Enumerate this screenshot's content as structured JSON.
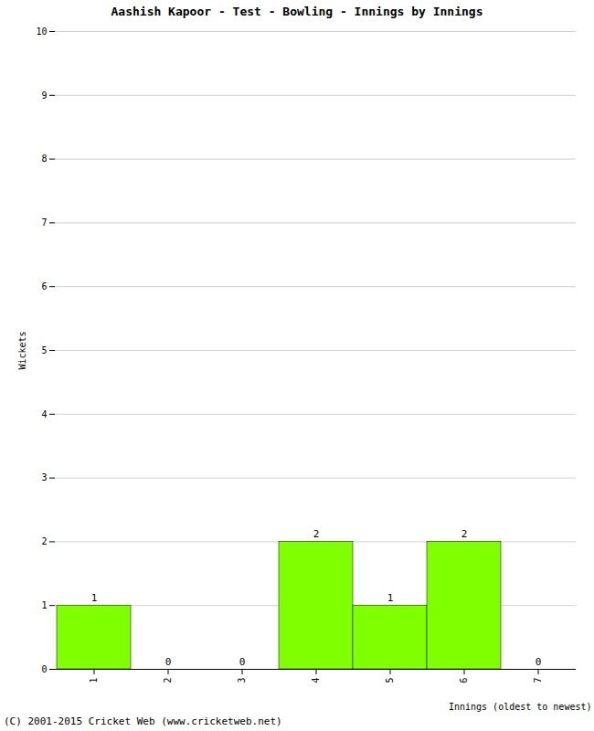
{
  "chart_data": {
    "type": "bar",
    "title": "Aashish Kapoor - Test - Bowling - Innings by Innings",
    "x_label": "Innings (oldest to newest)",
    "y_label": "Wickets",
    "caption": "(C) 2001-2015 Cricket Web (www.cricketweb.net)",
    "categories": [
      1,
      2,
      3,
      4,
      5,
      6,
      7
    ],
    "values": [
      1,
      0,
      0,
      2,
      1,
      2,
      0
    ],
    "color": "#7fff00",
    "ylim": [
      0,
      10
    ],
    "yticks": [
      0,
      1,
      2,
      3,
      4,
      5,
      6,
      7,
      8,
      9,
      10
    ],
    "grid": true,
    "data_labels": true
  }
}
